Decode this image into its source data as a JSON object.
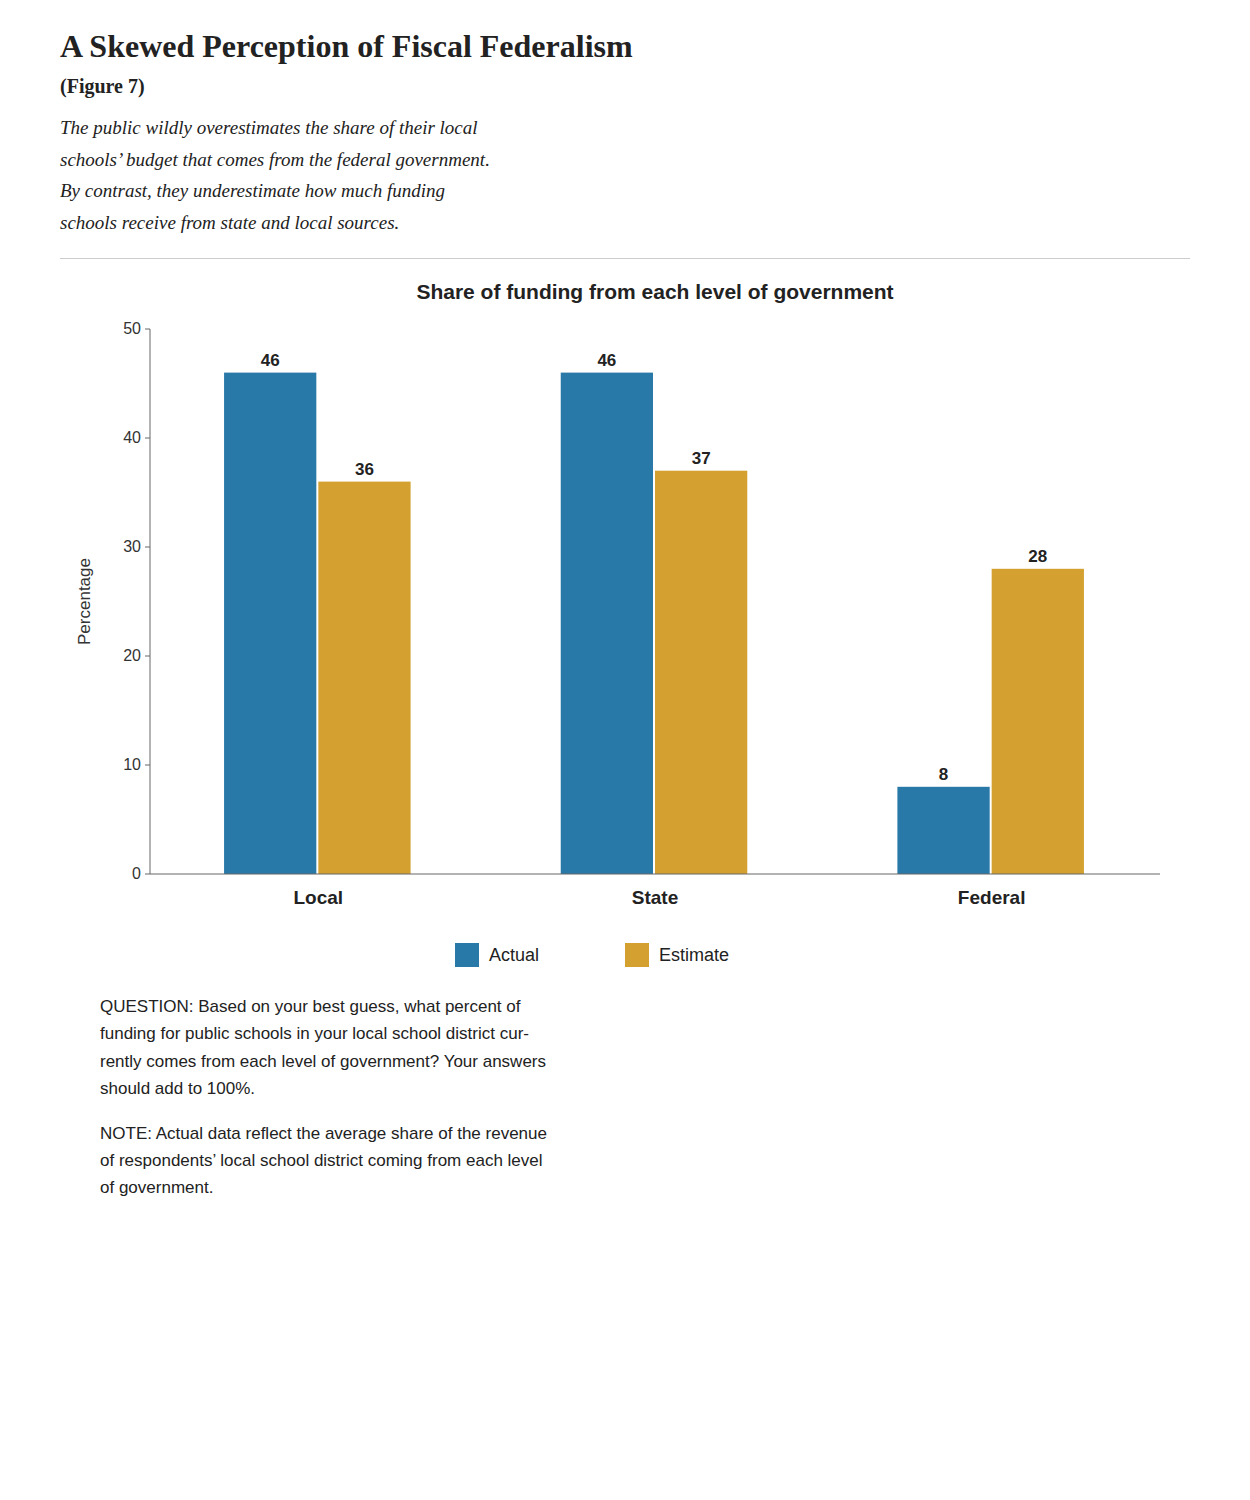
{
  "title": "A Skewed Perception of Fiscal Federalism",
  "subtitle": "(Figure 7)",
  "description": [
    "The public wildly overestimates the share of their local",
    "schools’ budget that comes from the federal government.",
    "By contrast, they underestimate how much funding",
    "schools receive from state and local sources."
  ],
  "chart_data": {
    "type": "bar",
    "title": "Share of funding from each level of government",
    "categories": [
      "Local",
      "State",
      "Federal"
    ],
    "series": [
      {
        "name": "Actual",
        "color": "#2878a8",
        "values": [
          46,
          46,
          8
        ]
      },
      {
        "name": "Estimate",
        "color": "#d4a030",
        "values": [
          36,
          37,
          28
        ]
      }
    ],
    "ylabel": "Percentage",
    "ylim": [
      0,
      50
    ],
    "yticks": [
      0,
      10,
      20,
      30,
      40,
      50
    ],
    "grid": false,
    "legend": "bottom",
    "data_labels": true,
    "annotations": [
      "QUESTION: Based on your best guess, what percent of\nfunding for public schools in your local school district cur-\nrently comes from each level of government? Your answers\nshould add to 100%.",
      "NOTE: Actual data reflect the average share of the revenue\nof respondents’ local school district coming from each level\nof government."
    ]
  }
}
